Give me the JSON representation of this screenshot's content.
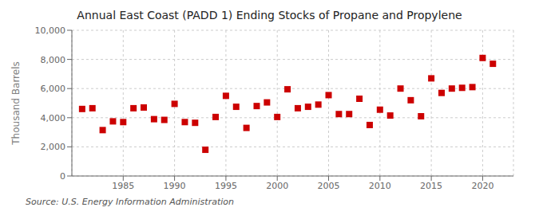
{
  "chart_data": {
    "type": "scatter",
    "title": "Annual East Coast (PADD 1) Ending Stocks of Propane and Propylene",
    "ylabel": "Thousand Barrels",
    "annotation": "Source: U.S. Energy Information Administration",
    "x": [
      1981,
      1982,
      1983,
      1984,
      1985,
      1986,
      1987,
      1988,
      1989,
      1990,
      1991,
      1992,
      1993,
      1994,
      1995,
      1996,
      1997,
      1998,
      1999,
      2000,
      2001,
      2002,
      2003,
      2004,
      2005,
      2006,
      2007,
      2008,
      2009,
      2010,
      2011,
      2012,
      2013,
      2014,
      2015,
      2016,
      2017,
      2018,
      2019,
      2020,
      2021
    ],
    "values": [
      4600,
      4650,
      3150,
      3750,
      3700,
      4650,
      4700,
      3900,
      3850,
      4950,
      3700,
      3650,
      1800,
      4050,
      5500,
      4750,
      3300,
      4800,
      5050,
      4050,
      5950,
      4650,
      4750,
      4900,
      5550,
      4250,
      4250,
      5300,
      3500,
      4550,
      4150,
      6000,
      5200,
      4100,
      6700,
      5700,
      6000,
      6050,
      6100,
      8100,
      7700
    ],
    "color": "#cc0000",
    "marker": "square",
    "xlim": [
      1980,
      2023
    ],
    "ylim": [
      0,
      10000
    ],
    "xticks": [
      1985,
      1990,
      1995,
      2000,
      2005,
      2010,
      2015,
      2020
    ],
    "yticks": [
      0,
      {
        "value": 2000,
        "label": "2,000"
      },
      {
        "value": 4000,
        "label": "4,000"
      },
      {
        "value": 6000,
        "label": "6,000"
      },
      {
        "value": 8000,
        "label": "8,000"
      },
      {
        "value": 10000,
        "label": "10,000"
      }
    ],
    "grid": true
  }
}
